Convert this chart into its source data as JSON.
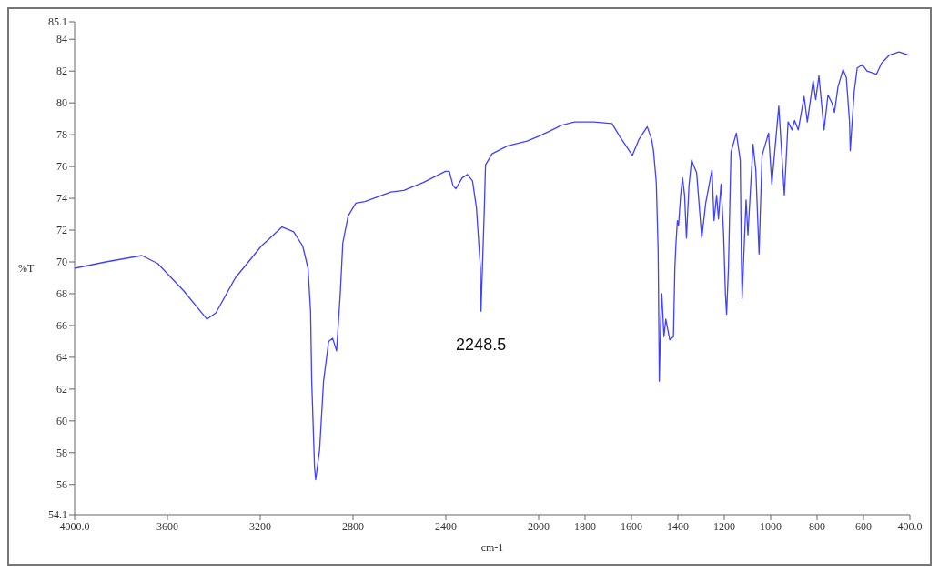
{
  "chart_data": {
    "type": "line",
    "xlabel": "cm-1",
    "ylabel": "%T",
    "x": [
      4000,
      3866,
      3710,
      3642,
      3531,
      3430,
      3391,
      3307,
      3195,
      3106,
      3056,
      3017,
      2994,
      2983,
      2978,
      2966,
      2961,
      2944,
      2927,
      2905,
      2888,
      2871,
      2855,
      2844,
      2821,
      2788,
      2749,
      2637,
      2581,
      2497,
      2402,
      2385,
      2369,
      2357,
      2329,
      2307,
      2285,
      2268,
      2251,
      2248.5,
      2234,
      2229,
      2201,
      2134,
      2050,
      2000,
      1956,
      1900,
      1845,
      1762,
      1684,
      1651,
      1596,
      1568,
      1532,
      1513,
      1505,
      1493,
      1485,
      1482,
      1480,
      1474,
      1469,
      1460,
      1452,
      1435,
      1419,
      1413,
      1408,
      1402,
      1397,
      1388,
      1380,
      1371,
      1363,
      1352,
      1341,
      1319,
      1297,
      1280,
      1253,
      1244,
      1233,
      1225,
      1214,
      1203,
      1195,
      1190,
      1182,
      1171,
      1148,
      1131,
      1126,
      1123,
      1115,
      1106,
      1098,
      1076,
      1064,
      1050,
      1037,
      1009,
      995,
      965,
      941,
      925,
      908,
      897,
      881,
      856,
      842,
      817,
      806,
      792,
      770,
      753,
      736,
      725,
      710,
      688,
      674,
      660,
      657,
      640,
      627,
      605,
      585,
      544,
      522,
      489,
      447,
      405
    ],
    "series": [
      {
        "color": "#4040ff",
        "values": [
          69.6,
          70.0,
          70.4,
          69.9,
          68.2,
          66.4,
          66.8,
          69.0,
          71.0,
          72.2,
          71.9,
          71.0,
          69.6,
          66.9,
          62.5,
          57.1,
          56.3,
          58.2,
          62.5,
          65.0,
          65.2,
          64.4,
          68.0,
          71.2,
          72.9,
          73.7,
          73.8,
          74.4,
          74.5,
          75.0,
          75.7,
          75.7,
          74.8,
          74.6,
          75.3,
          75.5,
          75.1,
          73.4,
          69.6,
          66.9,
          73.4,
          76.1,
          76.8,
          77.3,
          77.6,
          77.9,
          78.2,
          78.6,
          78.8,
          78.8,
          78.7,
          77.9,
          76.7,
          77.7,
          78.5,
          77.7,
          77.0,
          75.0,
          70.7,
          65.8,
          62.5,
          66.3,
          68.0,
          65.3,
          66.4,
          65.1,
          65.3,
          69.6,
          71.2,
          72.6,
          72.3,
          74.2,
          75.3,
          74.2,
          71.5,
          74.8,
          76.4,
          75.6,
          71.5,
          73.7,
          75.8,
          72.6,
          74.2,
          72.7,
          74.9,
          71.8,
          68.0,
          66.7,
          69.6,
          76.9,
          78.1,
          76.4,
          70.1,
          67.7,
          70.7,
          73.9,
          71.7,
          77.4,
          75.8,
          70.5,
          76.7,
          78.1,
          74.9,
          79.8,
          74.2,
          78.8,
          78.3,
          78.9,
          78.3,
          80.4,
          78.8,
          81.4,
          80.2,
          81.7,
          78.3,
          80.5,
          80.0,
          79.4,
          81.0,
          82.1,
          81.6,
          78.8,
          77.0,
          80.7,
          82.2,
          82.4,
          82.0,
          81.8,
          82.5,
          83.0,
          83.2,
          83.0
        ]
      }
    ],
    "xlim": [
      4000,
      400
    ],
    "xticks": [
      {
        "value": 4000,
        "label": "4000.0"
      },
      3600,
      3200,
      2800,
      2400,
      2000,
      1800,
      1600,
      1400,
      1200,
      1000,
      800,
      600,
      {
        "value": 400,
        "label": "400.0"
      }
    ],
    "ylim": [
      54.1,
      85.1
    ],
    "yticks": [
      54.1,
      56,
      58,
      60,
      62,
      64,
      66,
      68,
      70,
      72,
      74,
      76,
      78,
      80,
      82,
      84,
      85.1
    ],
    "annotations": [
      {
        "text": "2248.5",
        "x": 2248.5,
        "y": 66.9
      }
    ],
    "grid": false,
    "legend": false,
    "marker": "none",
    "line_style": "solid"
  }
}
